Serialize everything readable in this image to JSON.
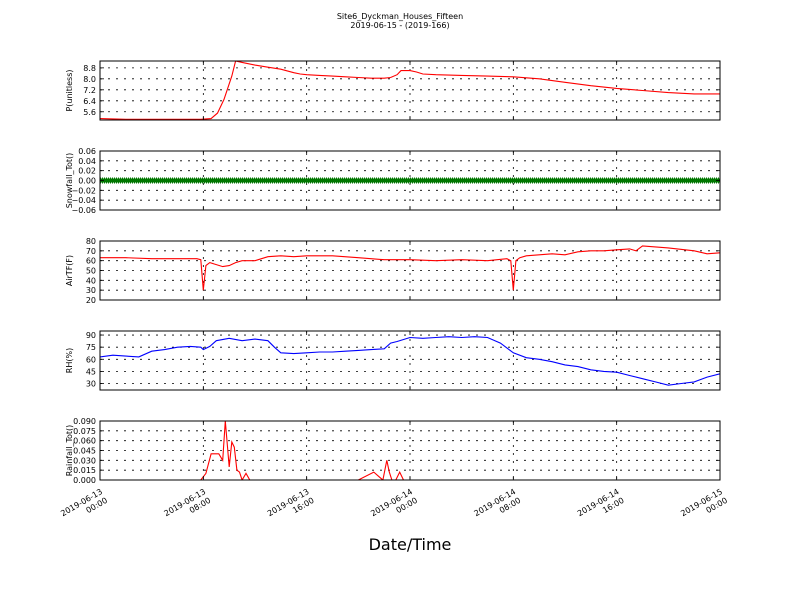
{
  "figure": {
    "title_line1": "Site6_Dyckman_Houses_Fifteen",
    "title_line2": "2019-06-15 - (2019-166)",
    "xlabel": "Date/Time"
  },
  "chart_data": {
    "type": "line",
    "x_ticks": [
      {
        "line1": "2019-06-13",
        "line2": "00:00",
        "hours": 0
      },
      {
        "line1": "2019-06-13",
        "line2": "08:00",
        "hours": 8
      },
      {
        "line1": "2019-06-13",
        "line2": "16:00",
        "hours": 16
      },
      {
        "line1": "2019-06-14",
        "line2": "00:00",
        "hours": 24
      },
      {
        "line1": "2019-06-14",
        "line2": "08:00",
        "hours": 32
      },
      {
        "line1": "2019-06-14",
        "line2": "16:00",
        "hours": 40
      },
      {
        "line1": "2019-06-15",
        "line2": "00:00",
        "hours": 48
      }
    ],
    "xlim": [
      0,
      48
    ],
    "grid": true,
    "panels": [
      {
        "ylabel": "P(unitless)",
        "color": "#ff0000",
        "ylim": [
          5.0,
          9.3
        ],
        "yticks": [
          5.6,
          6.4,
          7.2,
          8.0,
          8.8
        ],
        "ytick_labels": [
          "5.6",
          "6.4",
          "7.2",
          "8.0",
          "8.8"
        ],
        "x": [
          0,
          2,
          4,
          6,
          7.8,
          8.6,
          9.1,
          9.6,
          10.2,
          10.5,
          11,
          12,
          13,
          14,
          15,
          15.5,
          16,
          17,
          18,
          19,
          20,
          21,
          22,
          22.5,
          23,
          23.3,
          23.5,
          24,
          24.5,
          25,
          26,
          28,
          30,
          32,
          34,
          36,
          38,
          40,
          42,
          44,
          46,
          48
        ],
        "y": [
          5.1,
          5.05,
          5.05,
          5.05,
          5.05,
          5.1,
          5.5,
          6.5,
          8.2,
          9.3,
          9.2,
          9.0,
          8.85,
          8.7,
          8.45,
          8.35,
          8.3,
          8.25,
          8.2,
          8.15,
          8.1,
          8.05,
          8.05,
          8.1,
          8.3,
          8.6,
          8.6,
          8.6,
          8.5,
          8.35,
          8.3,
          8.25,
          8.2,
          8.15,
          8.0,
          7.75,
          7.5,
          7.3,
          7.15,
          7.0,
          6.9,
          6.9
        ]
      },
      {
        "ylabel": "Snowfall_Tot()",
        "color": "#007700",
        "marker": true,
        "ylim": [
          -0.06,
          0.06
        ],
        "yticks": [
          -0.06,
          -0.04,
          -0.02,
          0.0,
          0.02,
          0.04,
          0.06
        ],
        "ytick_labels": [
          "−0.06",
          "−0.04",
          "−0.02",
          "0.00",
          "0.02",
          "0.04",
          "0.06"
        ],
        "x": [
          0,
          48
        ],
        "y": [
          0,
          0
        ]
      },
      {
        "ylabel": "AirTF(F)",
        "color": "#ff0000",
        "ylim": [
          20,
          80
        ],
        "yticks": [
          20,
          30,
          40,
          50,
          60,
          70,
          80
        ],
        "ytick_labels": [
          "20",
          "30",
          "40",
          "50",
          "60",
          "70",
          "80"
        ],
        "x": [
          0,
          2,
          4,
          6,
          7.5,
          7.8,
          8.0,
          8.2,
          8.5,
          9,
          9.5,
          10,
          10.5,
          11,
          12,
          13,
          14,
          15,
          16,
          18,
          20,
          22,
          24,
          26,
          28,
          30,
          31.5,
          31.8,
          32.0,
          32.2,
          32.5,
          33,
          34,
          35,
          36,
          37,
          38,
          39,
          40,
          41,
          41.5,
          42,
          43,
          44,
          46,
          47,
          48
        ],
        "y": [
          63,
          63,
          62,
          62,
          62,
          61,
          30,
          55,
          58,
          56,
          54,
          55,
          58,
          60,
          60,
          64,
          65,
          64,
          65,
          65,
          63,
          61,
          61,
          60,
          61,
          60,
          62,
          60,
          30,
          60,
          63,
          65,
          66,
          67,
          66,
          69,
          70,
          70,
          71,
          72,
          70,
          75,
          74,
          73,
          70,
          67,
          68
        ]
      },
      {
        "ylabel": "RH(%)",
        "color": "#0000ff",
        "ylim": [
          22,
          95
        ],
        "yticks": [
          30,
          45,
          60,
          75,
          90
        ],
        "ytick_labels": [
          "30",
          "45",
          "60",
          "75",
          "90"
        ],
        "x": [
          0,
          1,
          2,
          3,
          4,
          5,
          6,
          7,
          7.8,
          8,
          8.5,
          9,
          10,
          11,
          12,
          13,
          13.5,
          14,
          15,
          16,
          17,
          18,
          19,
          20,
          21,
          22,
          22.5,
          23,
          24,
          25,
          26,
          27,
          28,
          29,
          30,
          31,
          32,
          33,
          34,
          35,
          36,
          37,
          38,
          39,
          40,
          41,
          42,
          43,
          44,
          45,
          46,
          47,
          48
        ],
        "y": [
          63,
          65,
          64,
          63,
          70,
          72,
          75,
          76,
          75,
          72,
          76,
          83,
          86,
          83,
          85,
          83,
          75,
          68,
          67,
          68,
          69,
          69,
          70,
          71,
          72,
          73,
          80,
          82,
          87,
          86,
          87,
          88,
          87,
          88,
          87,
          80,
          68,
          62,
          60,
          57,
          53,
          51,
          47,
          45,
          44,
          40,
          36,
          32,
          28,
          30,
          32,
          38,
          42
        ]
      },
      {
        "ylabel": "Rainfall_Tot()",
        "color": "#ff0000",
        "ylim": [
          0.0,
          0.09
        ],
        "yticks": [
          0.0,
          0.015,
          0.03,
          0.045,
          0.06,
          0.075,
          0.09
        ],
        "ytick_labels": [
          "0.000",
          "0.015",
          "0.030",
          "0.045",
          "0.060",
          "0.075",
          "0.090"
        ],
        "x": [
          0,
          7.8,
          8.2,
          8.6,
          9.2,
          9.5,
          9.7,
          10.0,
          10.2,
          10.4,
          10.6,
          10.8,
          11.0,
          11.3,
          11.6,
          12.0,
          12.5,
          13,
          20,
          21.2,
          21.6,
          21.9,
          22.2,
          22.4,
          22.6,
          22.9,
          23.2,
          23.5,
          23.8,
          24,
          48
        ],
        "y": [
          0,
          0,
          0.01,
          0.04,
          0.04,
          0.03,
          0.09,
          0.02,
          0.058,
          0.05,
          0.015,
          0.012,
          0.0,
          0.01,
          0.0,
          0.0,
          0.0,
          0.0,
          0.0,
          0.012,
          0.005,
          0.0,
          0.03,
          0.012,
          0.0,
          0.0,
          0.012,
          0.0,
          0.0,
          0.0,
          0.0
        ]
      }
    ]
  }
}
